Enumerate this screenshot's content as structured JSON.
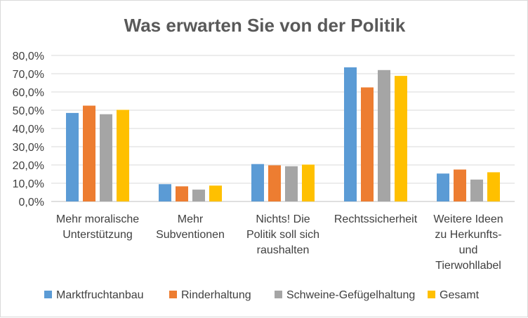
{
  "chart_data": {
    "type": "bar",
    "title": "Was erwarten Sie von der Politik",
    "categories": [
      [
        "Mehr moralische",
        "Unterstützung"
      ],
      [
        "Mehr",
        "Subventionen"
      ],
      [
        "Nichts! Die",
        "Politik soll sich",
        "raushalten"
      ],
      [
        "Rechtssicherheit"
      ],
      [
        "Weitere Ideen",
        "zu Herkunfts-",
        "und",
        "Tierwohllabel"
      ]
    ],
    "series": [
      {
        "name": "Marktfruchtanbau",
        "color": "#5b9bd5",
        "values": [
          48.5,
          9.5,
          20.5,
          73.5,
          15.3
        ]
      },
      {
        "name": "Rinderhaltung",
        "color": "#ed7d31",
        "values": [
          52.5,
          8.3,
          19.8,
          62.5,
          17.5
        ]
      },
      {
        "name": "Schweine-Gefügelhaltung",
        "color": "#a5a5a5",
        "values": [
          47.8,
          6.5,
          19.3,
          72.0,
          12.0
        ]
      },
      {
        "name": "Gesamt",
        "color": "#ffc000",
        "values": [
          50.2,
          8.7,
          20.2,
          68.8,
          16.0
        ]
      }
    ],
    "ylim": [
      0,
      80
    ],
    "yticks": [
      "0,0%",
      "10,0%",
      "20,0%",
      "30,0%",
      "40,0%",
      "50,0%",
      "60,0%",
      "70,0%",
      "80,0%"
    ],
    "grid": true,
    "legend": "bottom"
  }
}
